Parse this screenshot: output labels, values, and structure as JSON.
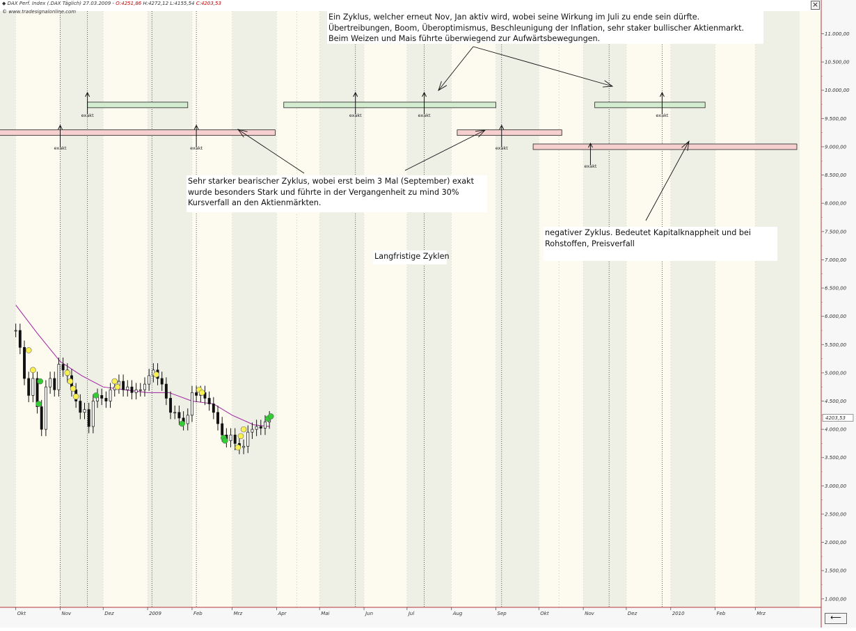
{
  "header": {
    "instrument": "DAX Perf. Index (.DAX Täglich)",
    "date": "27.03.2009",
    "open": "O:4251,86",
    "high": "H:4272,12",
    "low": "L:4155,54",
    "close": "C:4203,53",
    "copyright": "© www.tradesignalonline.com"
  },
  "controls": {
    "close_label": "×",
    "nav_label": "⟵"
  },
  "notes": {
    "bullish_cycle": [
      "Ein Zyklus, welcher erneut Nov, Jan aktiv wird, wobei seine Wirkung im Juli zu ende sein dürfte.",
      "Übertreibungen, Boom, Überoptimismus, Beschleunigung der Inflation, sehr staker bullischer Aktienmarkt.",
      "Beim Weizen und Mais führte überwiegend zur Aufwärtsbewegungen."
    ],
    "bearish_cycle": [
      "Sehr starker bearischer Zyklus, wobei erst beim 3 Mal (September) exakt",
      "wurde besonders Stark und führte in der Vergangenheit zu mind  30%",
      "Kursverfall an den Aktienmärkten."
    ],
    "negative_cycle": [
      "negativer Zyklus. Bedeutet Kapitalknappheit und bei",
      "Rohstoffen, Preisverfall"
    ],
    "title": "Langfristige Zyklen"
  },
  "chart_data": {
    "type": "line",
    "instrument": "DAX Perf. Index",
    "x_labels": [
      "Okt",
      "Nov",
      "Dez",
      "2009",
      "Feb",
      "Mrz",
      "Apr",
      "Mai",
      "Jun",
      "Jul",
      "Aug",
      "Sep",
      "Okt",
      "Nov",
      "Dez",
      "2010",
      "Feb",
      "Mrz"
    ],
    "y_ticks": [
      "11.000,00",
      "10.500,00",
      "10.000,00",
      "9.500,00",
      "9.000,00",
      "8.500,00",
      "8.000,00",
      "7.500,00",
      "7.000,00",
      "6.500,00",
      "6.000,00",
      "5.500,00",
      "5.000,00",
      "4.500,00",
      "4.000,00",
      "3.500,00",
      "3.000,00",
      "2.500,00",
      "2.000,00",
      "1.500,00",
      "1.000,00"
    ],
    "ylim": [
      850,
      11400
    ],
    "last_price": "4203,53",
    "price_series": {
      "x": [
        "2008-10-01",
        "2008-10-04",
        "2008-10-07",
        "2008-10-10",
        "2008-10-13",
        "2008-10-16",
        "2008-10-19",
        "2008-10-22",
        "2008-10-25",
        "2008-10-28",
        "2008-10-31",
        "2008-11-03",
        "2008-11-06",
        "2008-11-09",
        "2008-11-12",
        "2008-11-15",
        "2008-11-18",
        "2008-11-21",
        "2008-11-24",
        "2008-11-27",
        "2008-11-30",
        "2008-12-03",
        "2008-12-06",
        "2008-12-09",
        "2008-12-12",
        "2008-12-15",
        "2008-12-18",
        "2008-12-21",
        "2008-12-24",
        "2008-12-27",
        "2008-12-30",
        "2009-01-02",
        "2009-01-05",
        "2009-01-08",
        "2009-01-11",
        "2009-01-14",
        "2009-01-17",
        "2009-01-20",
        "2009-01-23",
        "2009-01-26",
        "2009-01-29",
        "2009-02-01",
        "2009-02-04",
        "2009-02-07",
        "2009-02-10",
        "2009-02-13",
        "2009-02-16",
        "2009-02-19",
        "2009-02-22",
        "2009-02-25",
        "2009-02-28",
        "2009-03-03",
        "2009-03-06",
        "2009-03-09",
        "2009-03-12",
        "2009-03-15",
        "2009-03-18",
        "2009-03-21",
        "2009-03-24",
        "2009-03-27"
      ],
      "close": [
        5750,
        5450,
        4900,
        4600,
        4900,
        4400,
        4000,
        4750,
        4900,
        4700,
        5150,
        5050,
        4950,
        4700,
        4500,
        4300,
        4350,
        4050,
        4500,
        4600,
        4550,
        4500,
        4700,
        4750,
        4850,
        4700,
        4750,
        4650,
        4700,
        4700,
        4800,
        4950,
        5050,
        4900,
        4800,
        4550,
        4300,
        4300,
        4200,
        4100,
        4250,
        4650,
        4600,
        4650,
        4550,
        4450,
        4300,
        4100,
        3900,
        3800,
        3900,
        3750,
        3680,
        3700,
        3950,
        4000,
        4050,
        4020,
        4130,
        4203
      ]
    },
    "moving_average": {
      "x": [
        "2008-10-01",
        "2008-10-16",
        "2008-11-01",
        "2008-11-16",
        "2008-12-01",
        "2008-12-16",
        "2009-01-01",
        "2009-01-16",
        "2009-02-01",
        "2009-02-16",
        "2009-03-01",
        "2009-03-16",
        "2009-03-27"
      ],
      "values": [
        6200,
        5700,
        5200,
        4950,
        4750,
        4700,
        4650,
        4650,
        4500,
        4450,
        4250,
        4080,
        4050
      ]
    },
    "signal_markers": [
      {
        "x": "2008-10-10",
        "value": 5400,
        "kind": "yellow"
      },
      {
        "x": "2008-10-13",
        "value": 5050,
        "kind": "yellow"
      },
      {
        "x": "2008-10-18",
        "value": 4850,
        "kind": "green"
      },
      {
        "x": "2008-10-17",
        "value": 4450,
        "kind": "green"
      },
      {
        "x": "2008-11-06",
        "value": 5000,
        "kind": "yellow"
      },
      {
        "x": "2008-11-08",
        "value": 4850,
        "kind": "yellow"
      },
      {
        "x": "2008-11-10",
        "value": 4720,
        "kind": "yellow"
      },
      {
        "x": "2008-11-12",
        "value": 4580,
        "kind": "yellow"
      },
      {
        "x": "2008-11-26",
        "value": 4600,
        "kind": "green"
      },
      {
        "x": "2008-12-09",
        "value": 4850,
        "kind": "yellow"
      },
      {
        "x": "2008-12-11",
        "value": 4750,
        "kind": "yellow"
      },
      {
        "x": "2009-01-07",
        "value": 4970,
        "kind": "yellow"
      },
      {
        "x": "2009-01-25",
        "value": 4100,
        "kind": "green"
      },
      {
        "x": "2009-02-06",
        "value": 4700,
        "kind": "yellow"
      },
      {
        "x": "2009-02-08",
        "value": 4650,
        "kind": "yellow"
      },
      {
        "x": "2009-02-23",
        "value": 3850,
        "kind": "green"
      },
      {
        "x": "2009-02-24",
        "value": 3800,
        "kind": "green"
      },
      {
        "x": "2009-03-05",
        "value": 3680,
        "kind": "yellow"
      },
      {
        "x": "2009-03-07",
        "value": 3880,
        "kind": "yellow"
      },
      {
        "x": "2009-03-09",
        "value": 4000,
        "kind": "yellow"
      },
      {
        "x": "2009-03-26",
        "value": 4190,
        "kind": "green"
      },
      {
        "x": "2009-03-28",
        "value": 4230,
        "kind": "green"
      }
    ],
    "cycle_lines": [
      "2008-11-01",
      "2008-11-20",
      "2009-01-04",
      "2009-02-04",
      "2009-05-26",
      "2009-07-13",
      "2009-09-05",
      "2009-11-19",
      "2009-12-26"
    ],
    "cycle_markers": [
      {
        "x": "2008-11-01",
        "level": 9220,
        "label": "exakt"
      },
      {
        "x": "2008-11-20",
        "level": 9800,
        "label": "exakt"
      },
      {
        "x": "2009-02-04",
        "level": 9220,
        "label": "exakt"
      },
      {
        "x": "2009-05-26",
        "level": 9800,
        "label": "exakt"
      },
      {
        "x": "2009-07-13",
        "level": 9800,
        "label": "exakt"
      },
      {
        "x": "2009-09-05",
        "level": 9220,
        "label": "exakt"
      },
      {
        "x": "2009-11-06",
        "level": 8900,
        "label": "exakt"
      },
      {
        "x": "2009-12-26",
        "level": 9800,
        "label": "exakt"
      }
    ],
    "bullish_zones": [
      {
        "from": "2008-11-20",
        "to": "2009-01-29",
        "level": 9740,
        "color": "#d3ecd0"
      },
      {
        "from": "2009-04-06",
        "to": "2009-09-01",
        "level": 9740,
        "color": "#d3ecd0"
      },
      {
        "from": "2009-11-09",
        "to": "2010-01-25",
        "level": 9740,
        "color": "#d3ecd0"
      }
    ],
    "bearish_zones": [
      {
        "from": "2008-09-01",
        "to": "2009-03-31",
        "level": 9250,
        "color": "#f6cfcf"
      },
      {
        "from": "2009-08-05",
        "to": "2009-10-17",
        "level": 9250,
        "color": "#f6cfcf"
      },
      {
        "from": "2009-09-27",
        "to": "2010-03-30",
        "level": 9000,
        "color": "#f6cfcf"
      }
    ],
    "grid": true
  }
}
